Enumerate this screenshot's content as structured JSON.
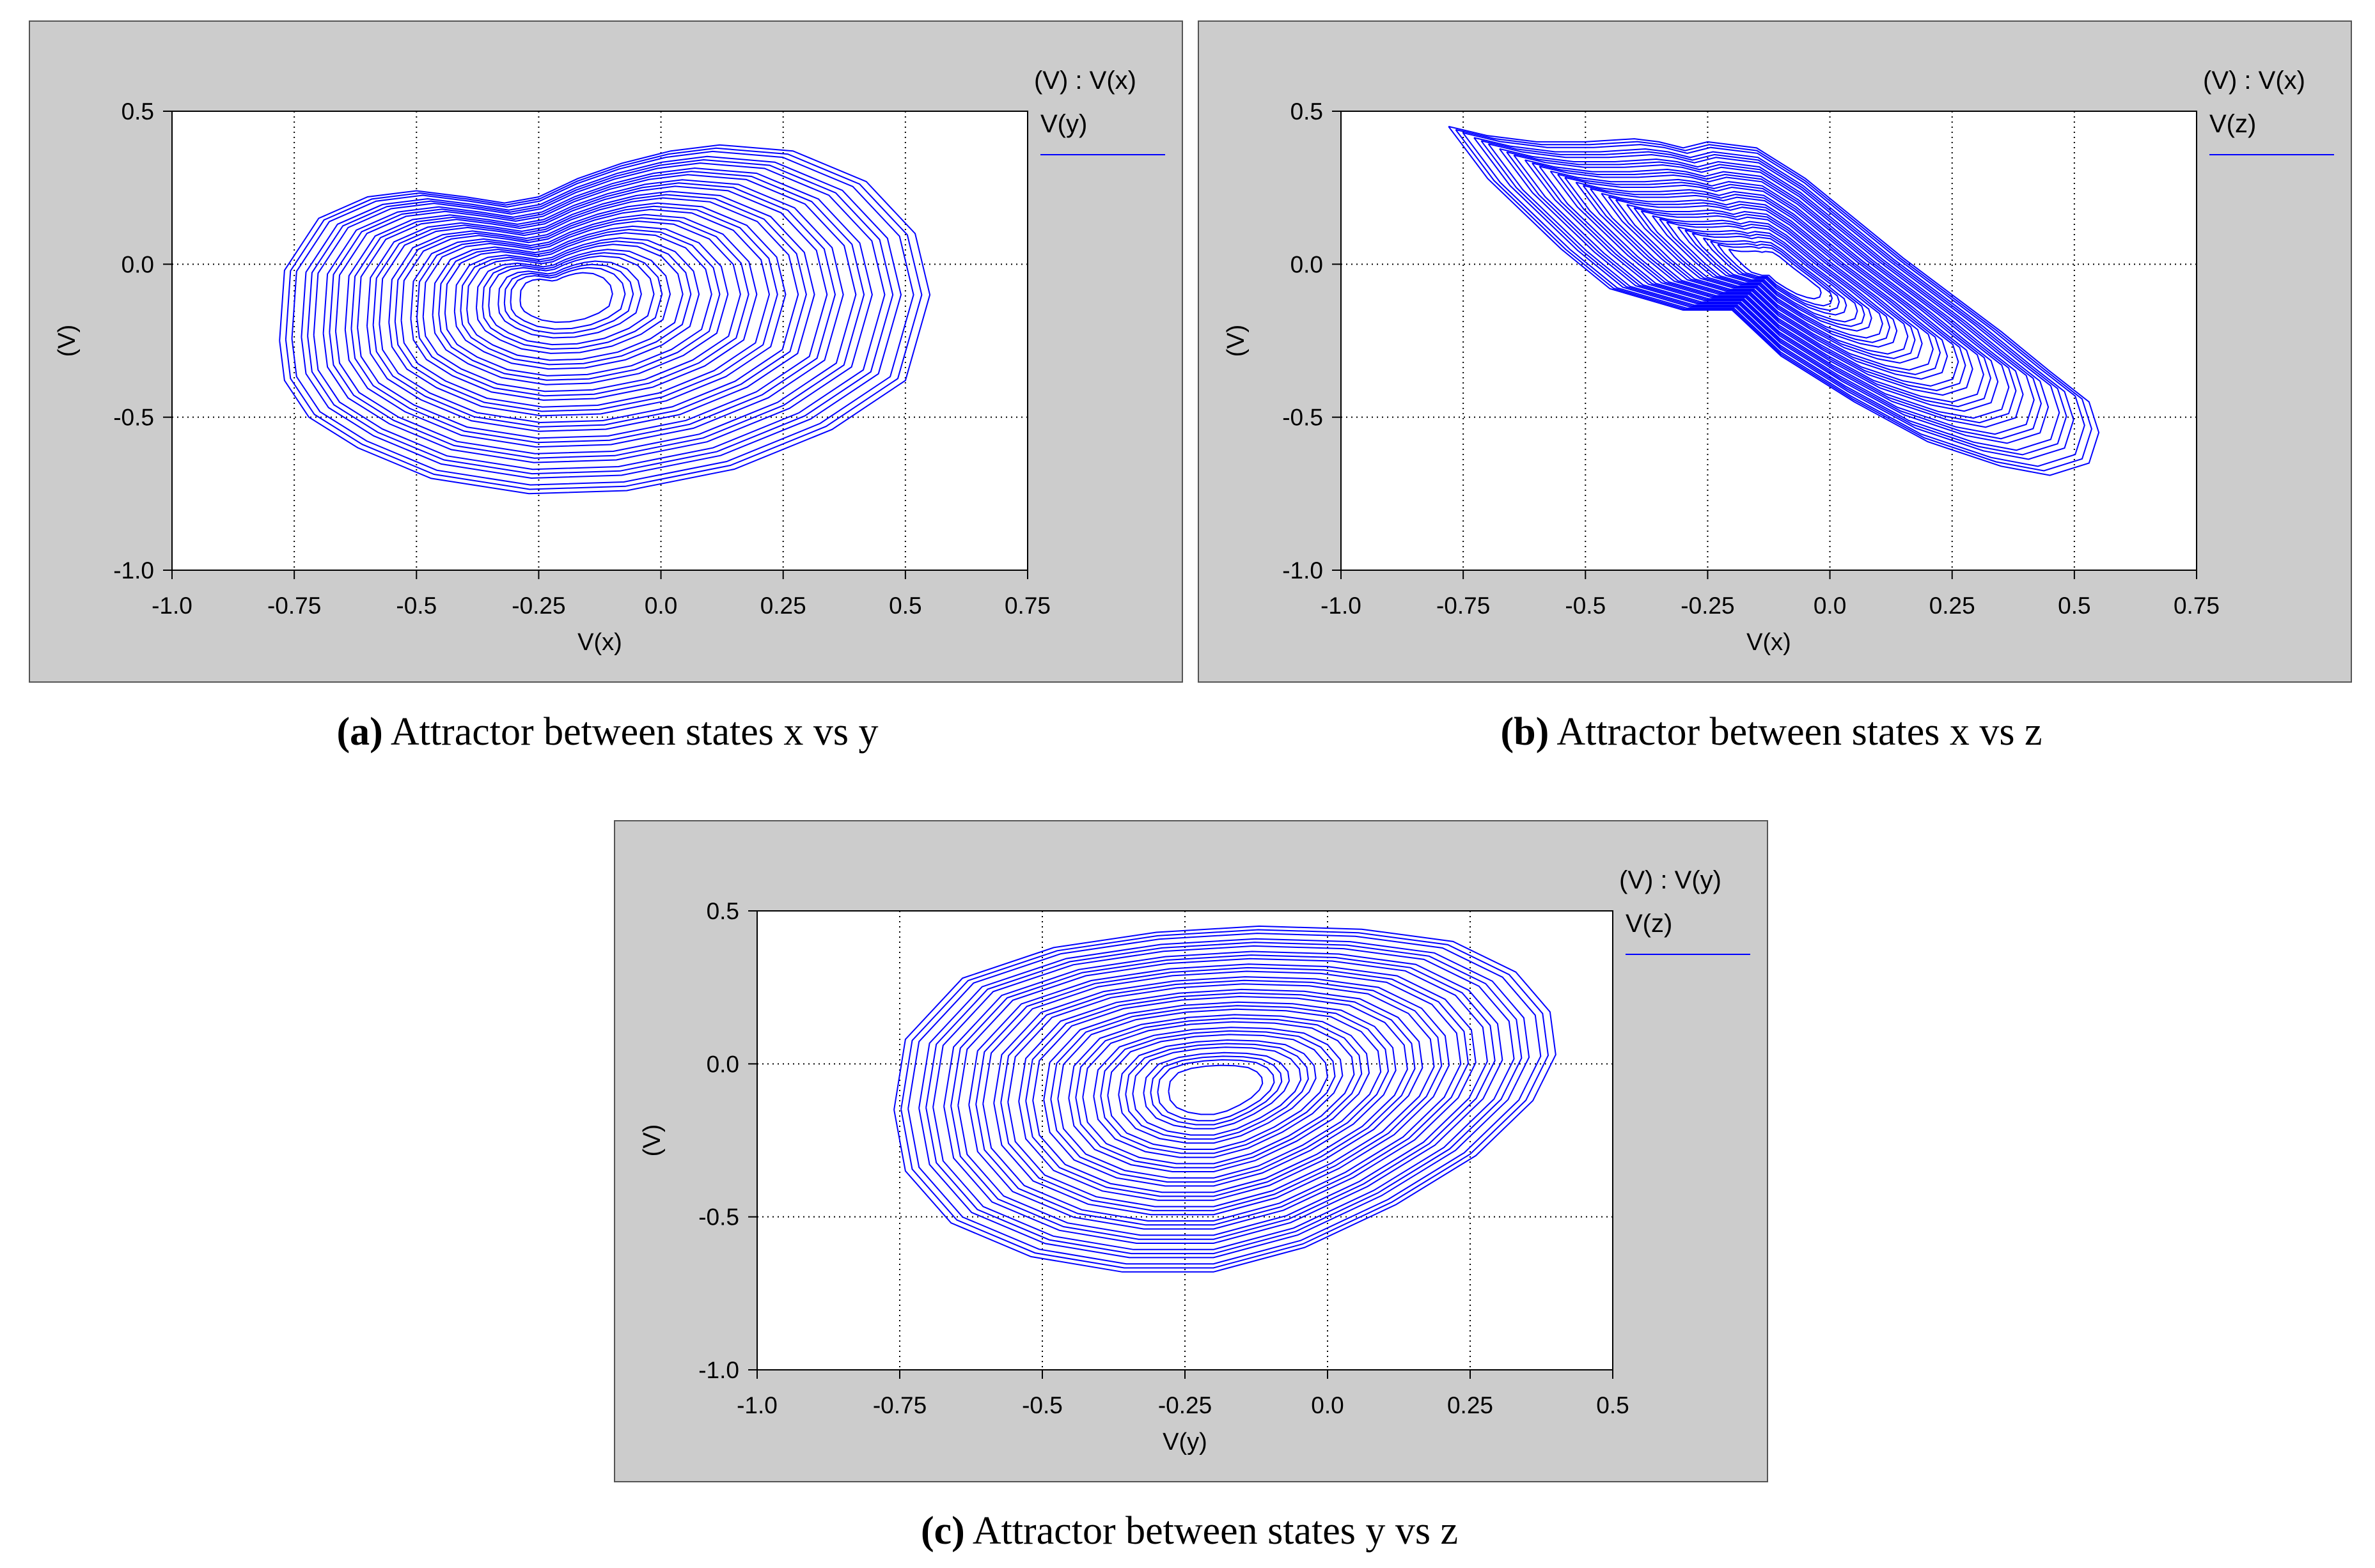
{
  "colors": {
    "panel_bg": "#cccccc",
    "plot_bg": "#ffffff",
    "trace": "#0000ff",
    "grid": "#000000"
  },
  "chart_data": [
    {
      "id": "a",
      "type": "line",
      "legend": {
        "title": "(V) : V(x)",
        "series": "V(y)",
        "position": "top-right outside"
      },
      "xlabel": "V(x)",
      "ylabel": "(V)",
      "xlim": [
        -1.0,
        0.75
      ],
      "ylim": [
        -1.0,
        0.5
      ],
      "xticks": [
        "-1.0",
        "-0.75",
        "-0.5",
        "-0.25",
        "0.0",
        "0.25",
        "0.5",
        "0.75"
      ],
      "yticks": [
        "0.5",
        "0.0",
        "-0.5",
        "-1.0"
      ],
      "grid": true,
      "caption_label": "(a)",
      "caption_text": " Attractor between states x vs y",
      "series": [
        {
          "x": [
            -0.78,
            -0.77,
            -0.72,
            -0.62,
            -0.47,
            -0.27,
            -0.07,
            0.15,
            0.35,
            0.5,
            0.55,
            0.52,
            0.42,
            0.27,
            0.12,
            0.02,
            -0.08,
            -0.17,
            -0.25,
            -0.32,
            -0.4,
            -0.5,
            -0.6,
            -0.7,
            -0.77,
            -0.78
          ],
          "y": [
            -0.25,
            -0.38,
            -0.5,
            -0.6,
            -0.7,
            -0.75,
            -0.74,
            -0.67,
            -0.54,
            -0.38,
            -0.1,
            0.1,
            0.27,
            0.37,
            0.39,
            0.37,
            0.33,
            0.28,
            0.22,
            0.2,
            0.22,
            0.24,
            0.22,
            0.15,
            -0.02,
            -0.25
          ]
        }
      ]
    },
    {
      "id": "b",
      "type": "line",
      "legend": {
        "title": "(V) : V(x)",
        "series": "V(z)",
        "position": "top-right outside"
      },
      "xlabel": "V(x)",
      "ylabel": "(V)",
      "xlim": [
        -1.0,
        0.75
      ],
      "ylim": [
        -1.0,
        0.5
      ],
      "xticks": [
        "-1.0",
        "-0.75",
        "-0.5",
        "-0.25",
        "0.0",
        "0.25",
        "0.5",
        "0.75"
      ],
      "yticks": [
        "0.5",
        "0.0",
        "-0.5",
        "-1.0"
      ],
      "grid": true,
      "caption_label": "(b)",
      "caption_text": " Attractor between states x vs z",
      "series": [
        {
          "x": [
            -0.78,
            -0.7,
            -0.6,
            -0.5,
            -0.4,
            -0.35,
            -0.3,
            -0.25,
            -0.15,
            -0.05,
            0.05,
            0.15,
            0.25,
            0.35,
            0.45,
            0.53,
            0.55,
            0.53,
            0.45,
            0.35,
            0.2,
            0.05,
            -0.1,
            -0.2,
            -0.3,
            -0.45,
            -0.55,
            -0.7,
            -0.78
          ],
          "y": [
            0.45,
            0.42,
            0.4,
            0.4,
            0.41,
            0.4,
            0.38,
            0.4,
            0.38,
            0.28,
            0.15,
            0.02,
            -0.1,
            -0.22,
            -0.35,
            -0.45,
            -0.55,
            -0.65,
            -0.69,
            -0.66,
            -0.58,
            -0.45,
            -0.3,
            -0.15,
            -0.15,
            -0.08,
            0.05,
            0.28,
            0.45
          ]
        }
      ]
    },
    {
      "id": "c",
      "type": "line",
      "legend": {
        "title": "(V) : V(y)",
        "series": "V(z)",
        "position": "top-right outside"
      },
      "xlabel": "V(y)",
      "ylabel": "(V)",
      "xlim": [
        -1.0,
        0.5
      ],
      "ylim": [
        -1.0,
        0.5
      ],
      "xticks": [
        "-1.0",
        "-0.75",
        "-0.5",
        "-0.25",
        "0.0",
        "0.25",
        "0.5"
      ],
      "yticks": [
        "0.5",
        "0.0",
        "-0.5",
        "-1.0"
      ],
      "grid": true,
      "caption_label": "(c)",
      "caption_text": " Attractor between states y vs z",
      "series": [
        {
          "x": [
            -0.76,
            -0.74,
            -0.66,
            -0.52,
            -0.36,
            -0.2,
            -0.04,
            0.12,
            0.26,
            0.36,
            0.4,
            0.39,
            0.33,
            0.22,
            0.06,
            -0.12,
            -0.3,
            -0.48,
            -0.64,
            -0.74,
            -0.76
          ],
          "y": [
            -0.15,
            -0.35,
            -0.52,
            -0.63,
            -0.68,
            -0.68,
            -0.6,
            -0.46,
            -0.3,
            -0.12,
            0.03,
            0.17,
            0.3,
            0.4,
            0.44,
            0.45,
            0.43,
            0.38,
            0.28,
            0.08,
            -0.15
          ]
        }
      ]
    }
  ]
}
